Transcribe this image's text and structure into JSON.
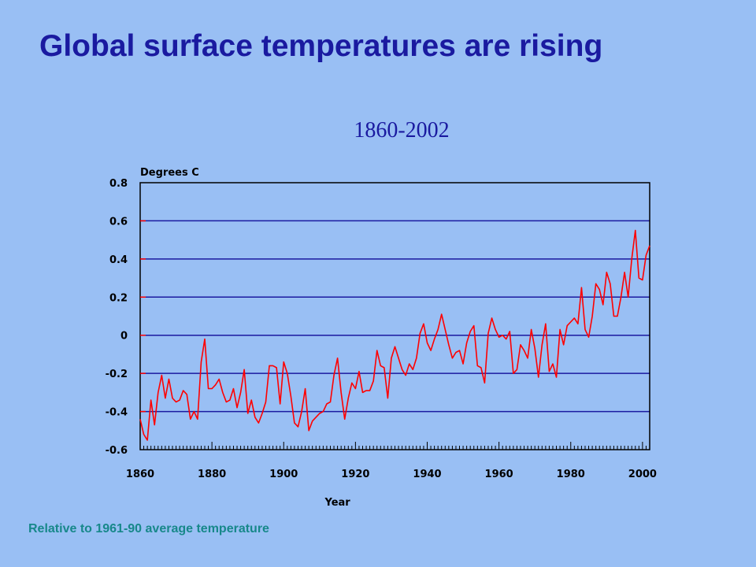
{
  "slide": {
    "title": "Global surface temperatures are rising",
    "footnote": "Relative to 1961-90 average temperature"
  },
  "colors": {
    "background": "#99bff4",
    "title": "#1a1aa0",
    "gridline": "#1a1aa0",
    "series": "#ff0000",
    "footnote": "#17888a"
  },
  "chart_data": {
    "type": "line",
    "title": "1860-2002",
    "xlabel": "Year",
    "ylabel": "Degrees C",
    "xlim": [
      1860,
      2002
    ],
    "ylim": [
      -0.6,
      0.8
    ],
    "yticks": [
      "0.8",
      "0.6",
      "0.4",
      "0.2",
      "0",
      "-0.2",
      "-0.4",
      "-0.6"
    ],
    "ytick_values": [
      0.8,
      0.6,
      0.4,
      0.2,
      0,
      -0.2,
      -0.4,
      -0.6
    ],
    "xticks": [
      "1860",
      "1880",
      "1900",
      "1920",
      "1940",
      "1960",
      "1980",
      "2000"
    ],
    "xtick_values": [
      1860,
      1880,
      1900,
      1920,
      1940,
      1960,
      1980,
      2000
    ],
    "grid": "horizontal",
    "series": [
      {
        "x": [
          1860,
          1861,
          1862,
          1863,
          1864,
          1865,
          1866,
          1867,
          1868,
          1869,
          1870,
          1871,
          1872,
          1873,
          1874,
          1875,
          1876,
          1877,
          1878,
          1879,
          1880,
          1881,
          1882,
          1883,
          1884,
          1885,
          1886,
          1887,
          1888,
          1889,
          1890,
          1891,
          1892,
          1893,
          1894,
          1895,
          1896,
          1897,
          1898,
          1899,
          1900,
          1901,
          1902,
          1903,
          1904,
          1905,
          1906,
          1907,
          1908,
          1909,
          1910,
          1911,
          1912,
          1913,
          1914,
          1915,
          1916,
          1917,
          1918,
          1919,
          1920,
          1921,
          1922,
          1923,
          1924,
          1925,
          1926,
          1927,
          1928,
          1929,
          1930,
          1931,
          1932,
          1933,
          1934,
          1935,
          1936,
          1937,
          1938,
          1939,
          1940,
          1941,
          1942,
          1943,
          1944,
          1945,
          1946,
          1947,
          1948,
          1949,
          1950,
          1951,
          1952,
          1953,
          1954,
          1955,
          1956,
          1957,
          1958,
          1959,
          1960,
          1961,
          1962,
          1963,
          1964,
          1965,
          1966,
          1967,
          1968,
          1969,
          1970,
          1971,
          1972,
          1973,
          1974,
          1975,
          1976,
          1977,
          1978,
          1979,
          1980,
          1981,
          1982,
          1983,
          1984,
          1985,
          1986,
          1987,
          1988,
          1989,
          1990,
          1991,
          1992,
          1993,
          1994,
          1995,
          1996,
          1997,
          1998,
          1999,
          2000,
          2001,
          2002
        ],
        "values": [
          -0.44,
          -0.52,
          -0.55,
          -0.34,
          -0.47,
          -0.3,
          -0.21,
          -0.33,
          -0.23,
          -0.33,
          -0.35,
          -0.34,
          -0.29,
          -0.31,
          -0.44,
          -0.4,
          -0.44,
          -0.14,
          -0.02,
          -0.28,
          -0.28,
          -0.26,
          -0.23,
          -0.3,
          -0.35,
          -0.34,
          -0.28,
          -0.38,
          -0.3,
          -0.18,
          -0.41,
          -0.34,
          -0.43,
          -0.46,
          -0.41,
          -0.35,
          -0.16,
          -0.16,
          -0.17,
          -0.36,
          -0.14,
          -0.2,
          -0.32,
          -0.46,
          -0.48,
          -0.4,
          -0.28,
          -0.5,
          -0.45,
          -0.43,
          -0.41,
          -0.4,
          -0.36,
          -0.35,
          -0.21,
          -0.12,
          -0.3,
          -0.44,
          -0.33,
          -0.25,
          -0.28,
          -0.19,
          -0.3,
          -0.29,
          -0.29,
          -0.24,
          -0.08,
          -0.16,
          -0.17,
          -0.33,
          -0.12,
          -0.06,
          -0.12,
          -0.18,
          -0.21,
          -0.15,
          -0.18,
          -0.12,
          0.01,
          0.06,
          -0.04,
          -0.08,
          -0.02,
          0.03,
          0.11,
          0.03,
          -0.05,
          -0.12,
          -0.09,
          -0.08,
          -0.15,
          -0.04,
          0.02,
          0.05,
          -0.16,
          -0.17,
          -0.25,
          0.01,
          0.09,
          0.03,
          -0.01,
          0.0,
          -0.02,
          0.02,
          -0.2,
          -0.18,
          -0.05,
          -0.08,
          -0.12,
          0.03,
          -0.07,
          -0.22,
          -0.05,
          0.06,
          -0.19,
          -0.15,
          -0.22,
          0.03,
          -0.05,
          0.05,
          0.07,
          0.09,
          0.06,
          0.25,
          0.03,
          -0.01,
          0.1,
          0.27,
          0.24,
          0.16,
          0.33,
          0.27,
          0.1,
          0.1,
          0.2,
          0.33,
          0.2,
          0.4,
          0.55,
          0.3,
          0.29,
          0.42,
          0.47
        ]
      }
    ]
  }
}
